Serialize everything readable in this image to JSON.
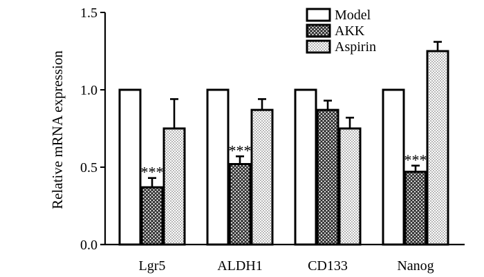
{
  "chart_data": {
    "type": "bar",
    "title": "",
    "xlabel": "",
    "ylabel": "Relative mRNA expression",
    "ylim": [
      0,
      1.5
    ],
    "yticks": [
      "0.0",
      "0.5",
      "1.0",
      "1.5"
    ],
    "ytick_values": [
      0,
      0.5,
      1.0,
      1.5
    ],
    "grid": false,
    "legend_position": "top-right",
    "categories": [
      "Lgr5",
      "ALDH1",
      "CD133",
      "Nanog"
    ],
    "series": [
      {
        "name": "Model",
        "pattern": "open",
        "values": [
          1.0,
          1.0,
          1.0,
          1.0
        ],
        "errors": [
          0,
          0,
          0,
          0
        ]
      },
      {
        "name": "AKK",
        "pattern": "crosshatch",
        "values": [
          0.37,
          0.52,
          0.87,
          0.47
        ],
        "errors": [
          0.06,
          0.05,
          0.06,
          0.04
        ]
      },
      {
        "name": "Aspirin",
        "pattern": "dotted",
        "values": [
          0.75,
          0.87,
          0.75,
          1.25
        ],
        "errors": [
          0.19,
          0.07,
          0.07,
          0.06
        ]
      }
    ],
    "annotations": [
      {
        "category": "Lgr5",
        "series": "AKK",
        "text": "***"
      },
      {
        "category": "ALDH1",
        "series": "AKK",
        "text": "***"
      },
      {
        "category": "Nanog",
        "series": "AKK",
        "text": "***"
      }
    ]
  },
  "colors": {
    "bar_fill": "#ffffff",
    "stroke": "#000000",
    "hatch_dark": "#3a3a3a"
  }
}
